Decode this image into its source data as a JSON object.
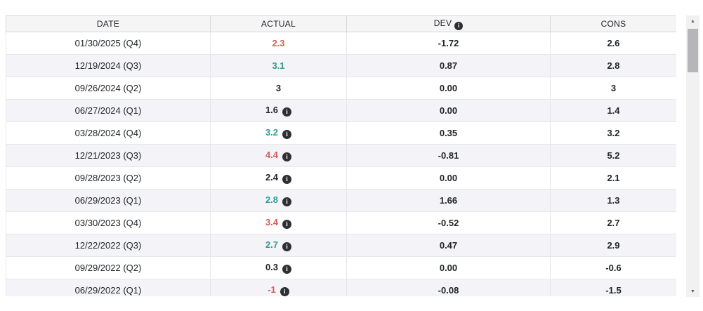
{
  "table": {
    "columns": [
      {
        "label": "DATE"
      },
      {
        "label": "ACTUAL"
      },
      {
        "label": "DEV",
        "has_info_icon": true
      },
      {
        "label": "CONS"
      }
    ],
    "rows": [
      {
        "date": "01/30/2025 (Q4)",
        "actual": "2.3",
        "actual_color": "red",
        "actual_info": false,
        "dev": "-1.72",
        "cons": "2.6"
      },
      {
        "date": "12/19/2024 (Q3)",
        "actual": "3.1",
        "actual_color": "green",
        "actual_info": false,
        "dev": "0.87",
        "cons": "2.8"
      },
      {
        "date": "09/26/2024 (Q2)",
        "actual": "3",
        "actual_color": "black",
        "actual_info": false,
        "dev": "0.00",
        "cons": "3"
      },
      {
        "date": "06/27/2024 (Q1)",
        "actual": "1.6",
        "actual_color": "black",
        "actual_info": true,
        "dev": "0.00",
        "cons": "1.4"
      },
      {
        "date": "03/28/2024 (Q4)",
        "actual": "3.2",
        "actual_color": "green",
        "actual_info": true,
        "dev": "0.35",
        "cons": "3.2"
      },
      {
        "date": "12/21/2023 (Q3)",
        "actual": "4.4",
        "actual_color": "red",
        "actual_info": true,
        "dev": "-0.81",
        "cons": "5.2"
      },
      {
        "date": "09/28/2023 (Q2)",
        "actual": "2.4",
        "actual_color": "black",
        "actual_info": true,
        "dev": "0.00",
        "cons": "2.1"
      },
      {
        "date": "06/29/2023 (Q1)",
        "actual": "2.8",
        "actual_color": "green",
        "actual_info": true,
        "dev": "1.66",
        "cons": "1.3"
      },
      {
        "date": "03/30/2023 (Q4)",
        "actual": "3.4",
        "actual_color": "red",
        "actual_info": true,
        "dev": "-0.52",
        "cons": "2.7"
      },
      {
        "date": "12/22/2022 (Q3)",
        "actual": "2.7",
        "actual_color": "green",
        "actual_info": true,
        "dev": "0.47",
        "cons": "2.9"
      },
      {
        "date": "09/29/2022 (Q2)",
        "actual": "0.3",
        "actual_color": "black",
        "actual_info": true,
        "dev": "0.00",
        "cons": "-0.6"
      },
      {
        "date": "06/29/2022 (Q1)",
        "actual": "-1",
        "actual_color": "red",
        "actual_info": true,
        "dev": "-0.08",
        "cons": "-1.5"
      }
    ]
  },
  "colors": {
    "red": "#d95a52",
    "green": "#2f9c8e",
    "black": "#212529",
    "alt_row_bg": "#f3f3f8",
    "header_bg": "#f5f5f6",
    "info_icon_bg": "#2e2e33"
  },
  "icons": {
    "info": "i",
    "scroll_up": "▲",
    "scroll_down": "▼"
  }
}
